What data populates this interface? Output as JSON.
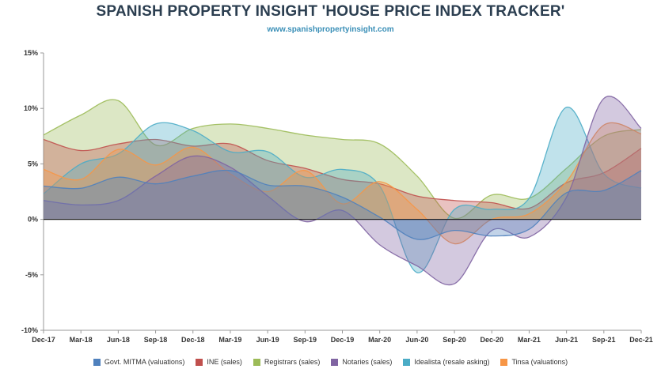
{
  "header": {
    "title": "SPANISH PROPERTY INSIGHT 'HOUSE PRICE INDEX TRACKER'",
    "subtitle": "www.spanishpropertyinsight.com"
  },
  "chart_data": {
    "type": "area",
    "title": "SPANISH PROPERTY INSIGHT 'HOUSE PRICE INDEX TRACKER'",
    "subtitle": "www.spanishpropertyinsight.com",
    "x_tick_labels": [
      "Dec-17",
      "Mar-18",
      "Jun-18",
      "Sep-18",
      "Dec-18",
      "Mar-19",
      "Jun-19",
      "Sep-19",
      "Dec-19",
      "Mar-20",
      "Jun-20",
      "Sep-20",
      "Dec-20",
      "Mar-21",
      "Jun-21",
      "Sep-21",
      "Dec-21"
    ],
    "y_tick_labels": [
      "15%",
      "10%",
      "5%",
      "0%",
      "-5%",
      "-10%"
    ],
    "y_ticks": [
      15,
      10,
      5,
      0,
      -5,
      -10
    ],
    "ylim": [
      -10,
      15
    ],
    "grid": "none",
    "legend_position": "bottom",
    "series": [
      {
        "name": "Registrars (sales)",
        "color": "#9cbb58",
        "values": [
          7.6,
          9.4,
          10.7,
          6.7,
          8.2,
          8.6,
          8.2,
          7.6,
          7.2,
          6.8,
          3.9,
          0.1,
          2.2,
          1.9,
          4.6,
          7.5,
          8.1
        ]
      },
      {
        "name": "INE (sales)",
        "color": "#c0504d",
        "values": [
          7.2,
          6.2,
          6.8,
          7.2,
          6.6,
          6.8,
          5.3,
          4.6,
          3.6,
          3.2,
          2.1,
          1.7,
          1.5,
          1.0,
          3.3,
          4.2,
          6.4
        ]
      },
      {
        "name": "Idealista (resale asking)",
        "color": "#4bacc6",
        "values": [
          2.3,
          5.0,
          5.9,
          8.6,
          8.0,
          6.1,
          6.1,
          3.8,
          4.5,
          3.0,
          -4.8,
          0.9,
          0.9,
          1.9,
          10.1,
          4.1,
          2.8
        ]
      },
      {
        "name": "Tinsa (valuations)",
        "color": "#f79646",
        "values": [
          4.5,
          3.6,
          6.3,
          4.9,
          6.5,
          4.1,
          2.5,
          4.4,
          1.4,
          3.4,
          0.9,
          -2.2,
          0.0,
          0.5,
          3.4,
          8.5,
          7.7
        ]
      },
      {
        "name": "Notaries (sales)",
        "color": "#8064a2",
        "values": [
          1.7,
          1.3,
          1.7,
          3.9,
          5.7,
          4.7,
          2.1,
          -0.2,
          0.8,
          -2.3,
          -4.2,
          -5.8,
          -1.0,
          -1.6,
          2.0,
          10.9,
          8.2
        ]
      },
      {
        "name": "Govt. MITMA (valuations)",
        "color": "#4f81bd",
        "values": [
          3.0,
          2.8,
          3.8,
          3.2,
          3.9,
          4.4,
          3.1,
          3.0,
          2.0,
          0.2,
          -1.8,
          -1.0,
          -1.5,
          -0.9,
          2.4,
          2.6,
          4.4
        ]
      }
    ],
    "legend_order": [
      "Govt. MITMA (valuations)",
      "INE (sales)",
      "Registrars (sales)",
      "Notaries (sales)",
      "Idealista (resale asking)",
      "Tinsa (valuations)"
    ]
  }
}
